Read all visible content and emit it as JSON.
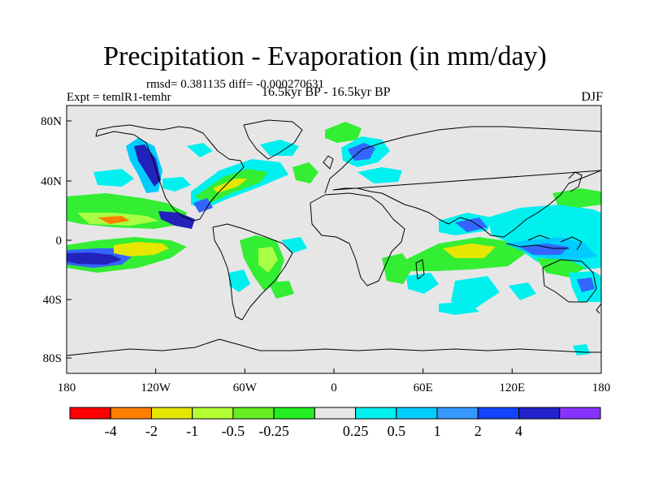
{
  "title": "Precipitation - Evaporation (in mm/day)",
  "stats": "rmsd= 0.381135 diff= -0.000270631",
  "expt": "Expt = temlR1-temhr",
  "period": "16.5kyr BP - 16.5kyr BP",
  "season": "DJF",
  "map": {
    "background_color": "#e6e6e6",
    "lon_ticks": [
      "180",
      "120W",
      "60W",
      "0",
      "60E",
      "120E",
      "180"
    ],
    "lat_ticks": [
      "80N",
      "40N",
      "0",
      "40S",
      "80S"
    ]
  },
  "colorbar": {
    "colors": [
      "#ff0000",
      "#ff8000",
      "#e6e600",
      "#b3ff33",
      "#66ee22",
      "#22ee22",
      "#e6e6e6",
      "#00f0f0",
      "#00ccff",
      "#3399ff",
      "#1144ff",
      "#2222cc",
      "#8833ff"
    ],
    "labels": [
      "-4",
      "-2",
      "-1",
      "-0.5",
      "-0.25",
      "0.25",
      "0.5",
      "1",
      "2",
      "4"
    ]
  },
  "colors": {
    "green": "#33ee33",
    "lightgreen": "#aaff44",
    "yellow": "#e6e600",
    "orange": "#ff8000",
    "cyan": "#00f0f0",
    "skyblue": "#00ccff",
    "blue": "#3366ff",
    "darkblue": "#2222bb",
    "coast": "#000000"
  }
}
